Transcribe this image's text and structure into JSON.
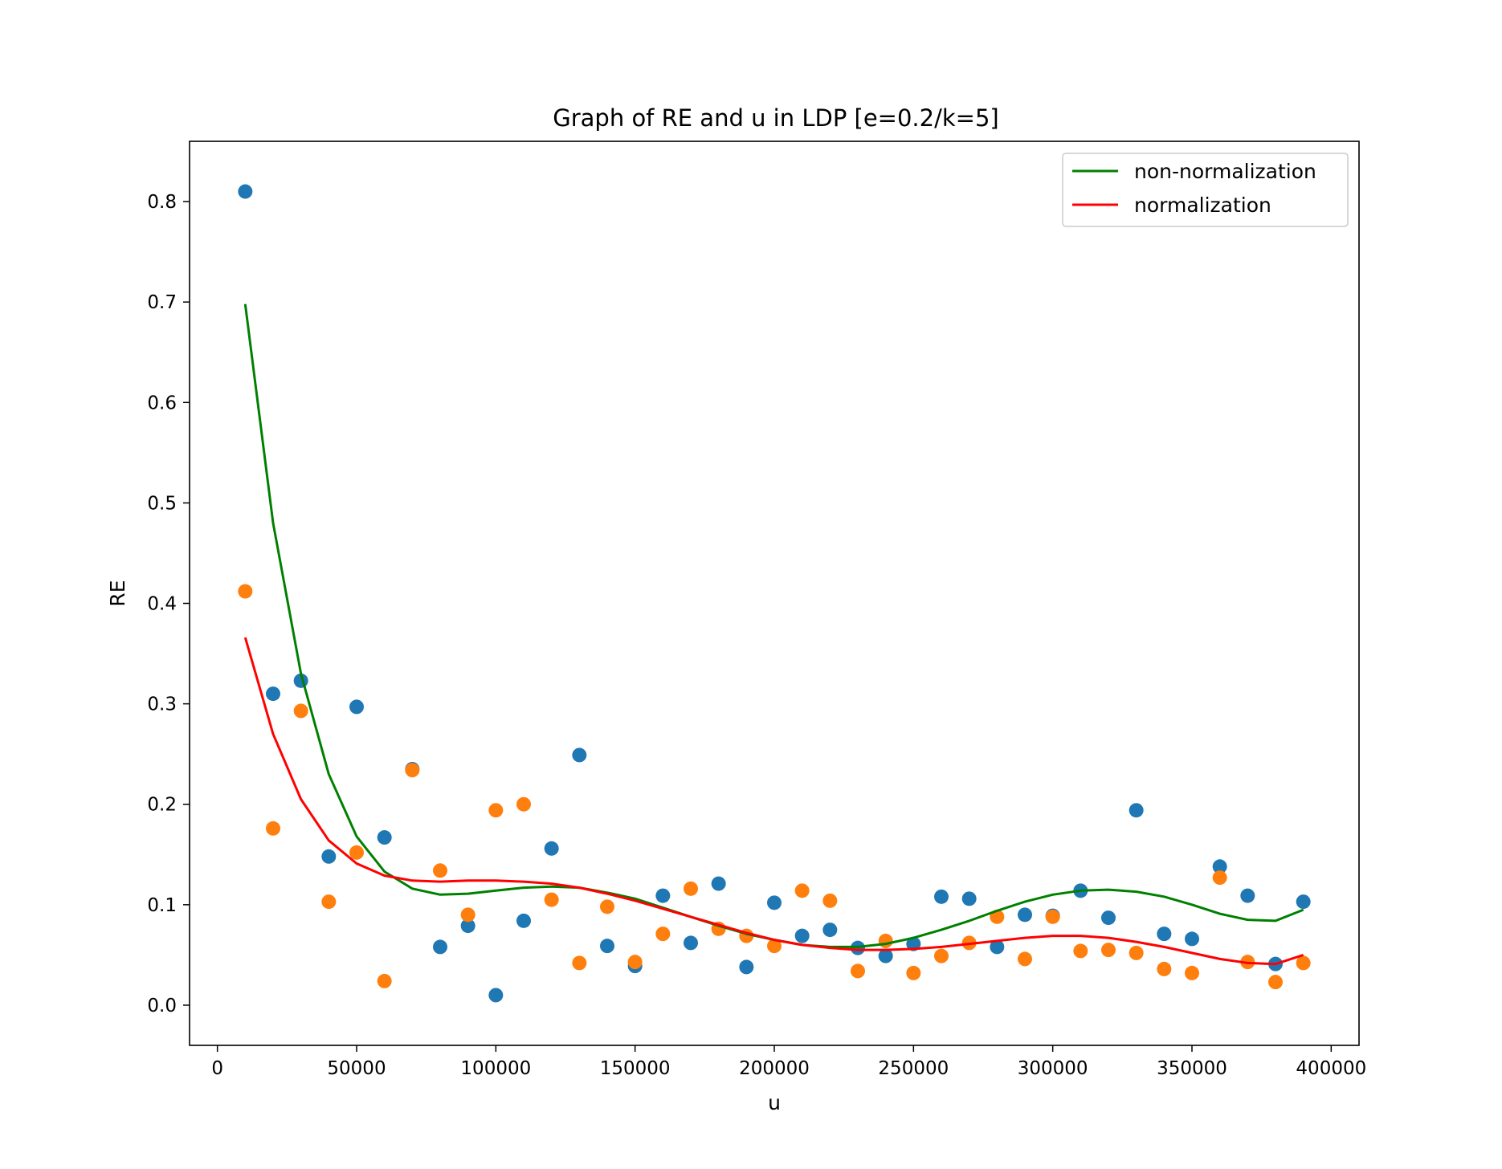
{
  "chart_data": {
    "type": "scatter",
    "title": "Graph of RE and u in LDP [e=0.2/k=5]",
    "xlabel": "u",
    "ylabel": "RE",
    "xlim": [
      -10000,
      410000
    ],
    "ylim": [
      -0.04,
      0.86
    ],
    "x_ticks": [
      0,
      50000,
      100000,
      150000,
      200000,
      250000,
      300000,
      350000,
      400000
    ],
    "x_tick_labels": [
      "0",
      "50000",
      "100000",
      "150000",
      "200000",
      "250000",
      "300000",
      "350000",
      "400000"
    ],
    "y_ticks": [
      0.0,
      0.1,
      0.2,
      0.3,
      0.4,
      0.5,
      0.6,
      0.7,
      0.8
    ],
    "y_tick_labels": [
      "0.0",
      "0.1",
      "0.2",
      "0.3",
      "0.4",
      "0.5",
      "0.6",
      "0.7",
      "0.8"
    ],
    "grid": false,
    "legend_position": "top-right",
    "x": [
      10000,
      20000,
      30000,
      40000,
      50000,
      60000,
      70000,
      80000,
      90000,
      100000,
      110000,
      120000,
      130000,
      140000,
      150000,
      160000,
      170000,
      180000,
      190000,
      200000,
      210000,
      220000,
      230000,
      240000,
      250000,
      260000,
      270000,
      280000,
      290000,
      300000,
      310000,
      320000,
      330000,
      340000,
      350000,
      360000,
      370000,
      380000,
      390000
    ],
    "scatter_series": [
      {
        "color": "#1f77b4",
        "values": [
          0.81,
          0.31,
          0.323,
          0.148,
          0.297,
          0.167,
          0.235,
          0.058,
          0.079,
          0.01,
          0.084,
          0.156,
          0.249,
          0.059,
          0.039,
          0.109,
          0.062,
          0.121,
          0.038,
          0.102,
          0.069,
          0.075,
          0.057,
          0.049,
          0.061,
          0.108,
          0.106,
          0.058,
          0.09,
          0.089,
          0.114,
          0.087,
          0.194,
          0.071,
          0.066,
          0.138,
          0.109,
          0.041,
          0.103
        ]
      },
      {
        "color": "#ff7f0e",
        "values": [
          0.412,
          0.176,
          0.293,
          0.103,
          0.152,
          0.024,
          0.234,
          0.134,
          0.09,
          0.194,
          0.2,
          0.105,
          0.042,
          0.098,
          0.043,
          0.071,
          0.116,
          0.076,
          0.069,
          0.059,
          0.114,
          0.104,
          0.034,
          0.064,
          0.032,
          0.049,
          0.062,
          0.088,
          0.046,
          0.088,
          0.054,
          0.055,
          0.052,
          0.036,
          0.032,
          0.127,
          0.043,
          0.023,
          0.042
        ]
      }
    ],
    "series": [
      {
        "name": "non-normalization",
        "color": "#008000",
        "values": [
          0.698,
          0.48,
          0.33,
          0.23,
          0.168,
          0.133,
          0.116,
          0.11,
          0.111,
          0.114,
          0.117,
          0.118,
          0.117,
          0.112,
          0.106,
          0.097,
          0.088,
          0.079,
          0.071,
          0.065,
          0.06,
          0.058,
          0.058,
          0.061,
          0.067,
          0.075,
          0.084,
          0.094,
          0.103,
          0.11,
          0.114,
          0.115,
          0.113,
          0.108,
          0.1,
          0.091,
          0.085,
          0.084,
          0.095
        ]
      },
      {
        "name": "normalization",
        "color": "#ff0000",
        "values": [
          0.366,
          0.27,
          0.205,
          0.164,
          0.141,
          0.129,
          0.124,
          0.123,
          0.124,
          0.124,
          0.123,
          0.121,
          0.117,
          0.111,
          0.104,
          0.096,
          0.088,
          0.08,
          0.072,
          0.065,
          0.06,
          0.057,
          0.055,
          0.055,
          0.056,
          0.058,
          0.061,
          0.064,
          0.067,
          0.069,
          0.069,
          0.067,
          0.063,
          0.058,
          0.052,
          0.046,
          0.042,
          0.041,
          0.05
        ]
      }
    ]
  }
}
